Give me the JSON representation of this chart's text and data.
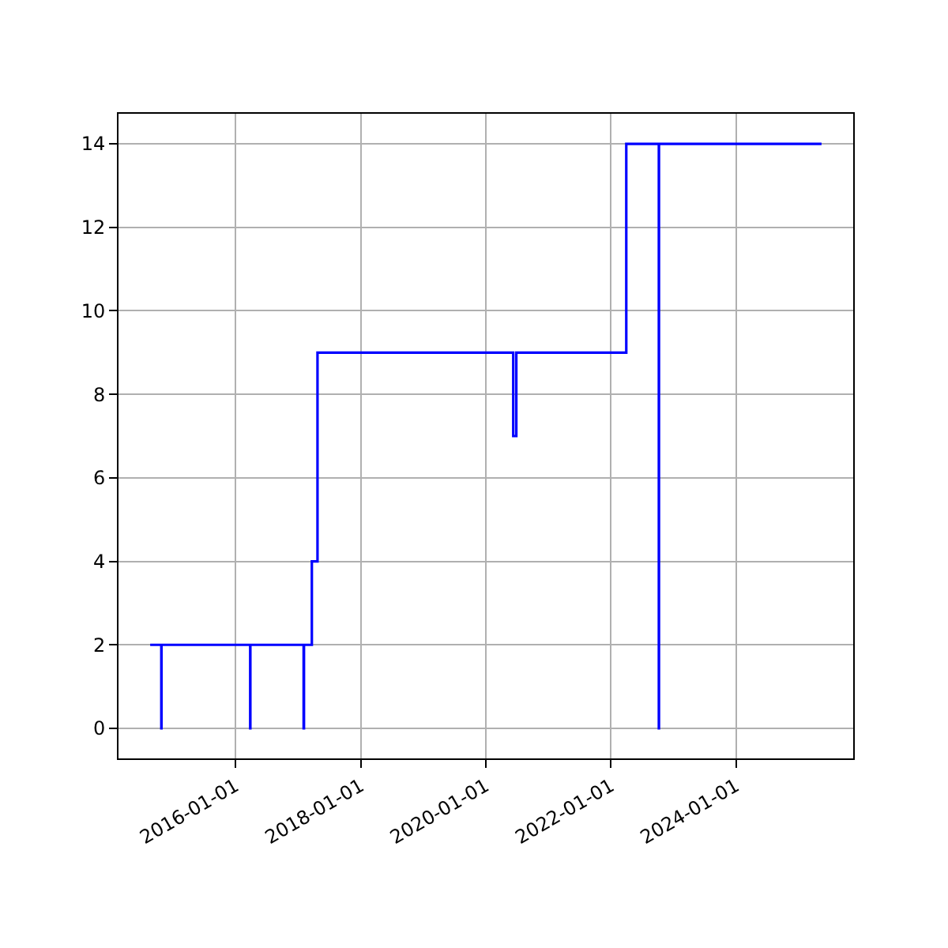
{
  "chart_data": {
    "type": "step",
    "x": [
      "2014-08-21",
      "2014-10-25",
      "2014-10-26",
      "2016-03-27",
      "2016-03-28",
      "2017-02-02",
      "2017-02-04",
      "2017-03-22",
      "2017-04-24",
      "2020-06-10",
      "2020-06-28",
      "2022-04-01",
      "2022-10-08",
      "2022-10-09",
      "2025-05-15"
    ],
    "series": [
      {
        "color": "#0000ff",
        "values": [
          2,
          0,
          2,
          0,
          2,
          0,
          2,
          4,
          9,
          7,
          9,
          14,
          0,
          14,
          14
        ]
      }
    ],
    "xlim": [
      "2014-02-17",
      "2025-11-16"
    ],
    "xticks": [
      "2016-01-01",
      "2018-01-01",
      "2020-01-01",
      "2022-01-01",
      "2024-01-01"
    ],
    "ylim": [
      -0.72,
      14.72
    ],
    "yticks": [
      0,
      2,
      4,
      6,
      8,
      10,
      12,
      14
    ],
    "grid": true
  }
}
